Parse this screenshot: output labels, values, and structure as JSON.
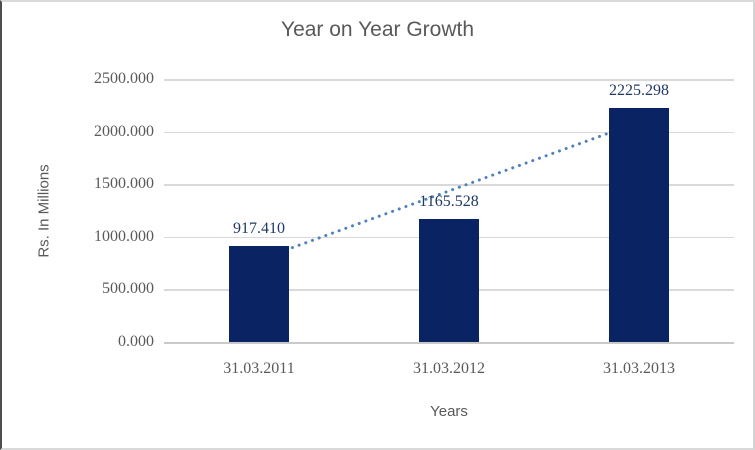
{
  "chart_data": {
    "type": "bar",
    "title": "Year on Year Growth",
    "xlabel": "Years",
    "ylabel": "Rs. In Millions",
    "categories": [
      "31.03.2011",
      "31.03.2012",
      "31.03.2013"
    ],
    "values": [
      917.41,
      1165.528,
      2225.298
    ],
    "value_labels": [
      "917.410",
      "1165.528",
      "2225.298"
    ],
    "yticks": [
      "2500.000",
      "2000.000",
      "1500.000",
      "1000.000",
      "500.000",
      "0.000"
    ],
    "ylim": [
      0,
      2500
    ],
    "grid": true,
    "legend": "none",
    "trendline": {
      "type": "linear",
      "style": "dotted"
    },
    "colors": {
      "bar": "#0a2463",
      "trendline": "#4f81bd",
      "data_label": "#1f3864",
      "axis_text": "#595959",
      "gridline": "#d9d9d9",
      "axis_line": "#c9c9c9"
    }
  }
}
